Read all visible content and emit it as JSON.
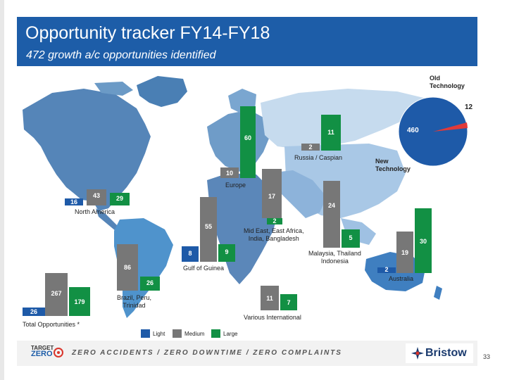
{
  "header": {
    "title": "Opportunity tracker FY14-FY18",
    "subtitle": "472 growth a/c opportunities identified"
  },
  "colors": {
    "light": "#1e5aa8",
    "medium": "#777777",
    "large": "#129044"
  },
  "regions": [
    {
      "name": "North America",
      "light": "16",
      "medium": "43",
      "large": "29"
    },
    {
      "name": "Europe",
      "medium": "10",
      "large": "60"
    },
    {
      "name": "Russia / Caspian",
      "medium": "2",
      "large": "11"
    },
    {
      "name": "Mid East, East Africa, India, Bangladesh",
      "medium": "17",
      "large": "2"
    },
    {
      "name": "Gulf of Guinea",
      "light": "8",
      "medium": "55",
      "large": "9"
    },
    {
      "name": "Brazil, Peru, Trinidad",
      "medium": "86",
      "large": "26"
    },
    {
      "name": "Malaysia, Thailand Indonesia",
      "medium": "24",
      "large": "5"
    },
    {
      "name": "Australia",
      "light": "2",
      "medium": "19",
      "large": "30"
    },
    {
      "name": "Various International",
      "medium": "11",
      "large": "7"
    },
    {
      "name": "Total Opportunities",
      "light": "26",
      "medium": "267",
      "large": "179"
    }
  ],
  "labels": {
    "north_america": "North America",
    "europe": "Europe",
    "russia": "Russia / Caspian",
    "mideast_1": "Mid East, East Africa,",
    "mideast_2": "India, Bangladesh",
    "gulf": "Gulf of Guinea",
    "brazil_1": "Brazil, Peru,",
    "brazil_2": "Trinidad",
    "malaysia_1": "Malaysia, Thailand",
    "malaysia_2": "Indonesia",
    "australia": "Australia",
    "various": "Various International",
    "total": "Total Opportunities *"
  },
  "pie": {
    "old_label_1": "Old",
    "old_label_2": "Technology",
    "old_value": "12",
    "new_label_1": "New",
    "new_label_2": "Technology",
    "new_value": "460"
  },
  "legend": {
    "light": "Light",
    "medium": "Medium",
    "large": "Large"
  },
  "footer": {
    "slogan": "ZERO ACCIDENTS / ZERO DOWNTIME / ZERO COMPLAINTS",
    "target_1": "TARGET",
    "target_2": "ZERO",
    "brand": "Bristow",
    "page": "33"
  }
}
